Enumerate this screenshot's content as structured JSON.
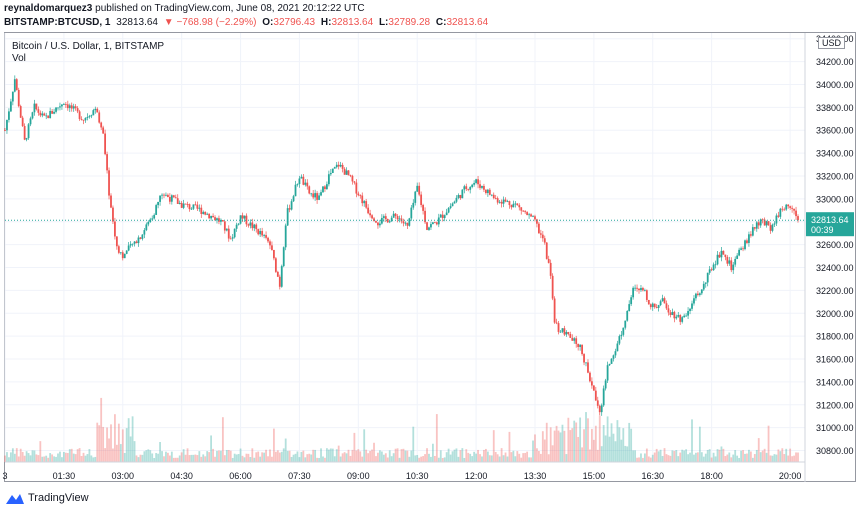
{
  "header": {
    "publisher": "reynaldomarquez3",
    "published_text": "published on TradingView.com, June 08, 2021 20:12:22 UTC"
  },
  "ohlc_bar": {
    "symbol": "BITSTAMP:BTCUSD, 1",
    "last": "32813.64",
    "change": "▼ −768.98 (−2.29%)",
    "o_label": "O:",
    "o_value": "32796.43",
    "h_label": "H:",
    "h_value": "32813.64",
    "l_label": "L:",
    "l_value": "32789.28",
    "c_label": "C:",
    "c_value": "32813.64"
  },
  "legend": {
    "title": "Bitcoin / U.S. Dollar, 1, BITSTAMP",
    "vol": "Vol"
  },
  "currency": "USD",
  "last_price_tag": {
    "price": "32813.64",
    "countdown": "00:39"
  },
  "footer": {
    "brand": "TradingView"
  },
  "colors": {
    "up": "#26a69a",
    "down": "#ef5350",
    "grid": "#f0f3fa",
    "last_line": "#26a69a"
  },
  "chart_data": {
    "type": "candlestick",
    "title": "Bitcoin / U.S. Dollar, 1, BITSTAMP",
    "ylim": [
      30700,
      34450
    ],
    "y_ticks": [
      "34400.00",
      "34200.00",
      "34000.00",
      "33800.00",
      "33600.00",
      "33400.00",
      "33200.00",
      "33000.00",
      "32800.00",
      "32600.00",
      "32400.00",
      "32200.00",
      "32000.00",
      "31800.00",
      "31600.00",
      "31400.00",
      "31200.00",
      "31000.00",
      "30800.00"
    ],
    "x_ticks": [
      "3",
      "01:30",
      "03:00",
      "04:30",
      "06:00",
      "07:30",
      "09:00",
      "10:30",
      "12:00",
      "13:30",
      "15:00",
      "16:30",
      "18:00",
      "20:00"
    ],
    "last_price": 32813.64,
    "price_path": [
      [
        "00:00",
        33600
      ],
      [
        "00:15",
        34050
      ],
      [
        "00:30",
        33500
      ],
      [
        "00:45",
        33800
      ],
      [
        "01:00",
        33700
      ],
      [
        "01:30",
        33850
      ],
      [
        "02:00",
        33700
      ],
      [
        "02:20",
        33800
      ],
      [
        "02:30",
        33550
      ],
      [
        "02:40",
        33000
      ],
      [
        "02:50",
        32600
      ],
      [
        "03:00",
        32500
      ],
      [
        "03:30",
        32700
      ],
      [
        "03:45",
        32850
      ],
      [
        "04:00",
        33050
      ],
      [
        "04:30",
        32950
      ],
      [
        "05:00",
        32900
      ],
      [
        "05:30",
        32800
      ],
      [
        "05:45",
        32650
      ],
      [
        "06:00",
        32850
      ],
      [
        "06:30",
        32700
      ],
      [
        "06:45",
        32600
      ],
      [
        "07:00",
        32250
      ],
      [
        "07:10",
        32850
      ],
      [
        "07:30",
        33200
      ],
      [
        "07:45",
        33050
      ],
      [
        "08:00",
        33000
      ],
      [
        "08:15",
        33200
      ],
      [
        "08:30",
        33300
      ],
      [
        "08:45",
        33200
      ],
      [
        "09:00",
        33050
      ],
      [
        "09:15",
        32900
      ],
      [
        "09:30",
        32800
      ],
      [
        "10:00",
        32850
      ],
      [
        "10:15",
        32750
      ],
      [
        "10:30",
        33100
      ],
      [
        "10:45",
        32750
      ],
      [
        "11:00",
        32800
      ],
      [
        "11:30",
        33000
      ],
      [
        "11:45",
        33100
      ],
      [
        "12:00",
        33150
      ],
      [
        "12:30",
        33000
      ],
      [
        "13:00",
        32950
      ],
      [
        "13:30",
        32800
      ],
      [
        "13:45",
        32600
      ],
      [
        "13:55",
        32300
      ],
      [
        "14:00",
        31900
      ],
      [
        "14:20",
        31800
      ],
      [
        "14:40",
        31700
      ],
      [
        "15:00",
        31300
      ],
      [
        "15:10",
        31150
      ],
      [
        "15:20",
        31500
      ],
      [
        "15:40",
        31800
      ],
      [
        "16:00",
        32200
      ],
      [
        "16:15",
        32200
      ],
      [
        "16:30",
        32050
      ],
      [
        "16:45",
        32100
      ],
      [
        "17:00",
        32000
      ],
      [
        "17:15",
        31950
      ],
      [
        "17:30",
        32100
      ],
      [
        "17:45",
        32200
      ],
      [
        "18:00",
        32400
      ],
      [
        "18:15",
        32550
      ],
      [
        "18:30",
        32400
      ],
      [
        "18:45",
        32550
      ],
      [
        "19:00",
        32700
      ],
      [
        "19:15",
        32800
      ],
      [
        "19:30",
        32750
      ],
      [
        "19:45",
        32900
      ],
      [
        "20:00",
        32950
      ],
      [
        "20:12",
        32813.64
      ]
    ]
  }
}
